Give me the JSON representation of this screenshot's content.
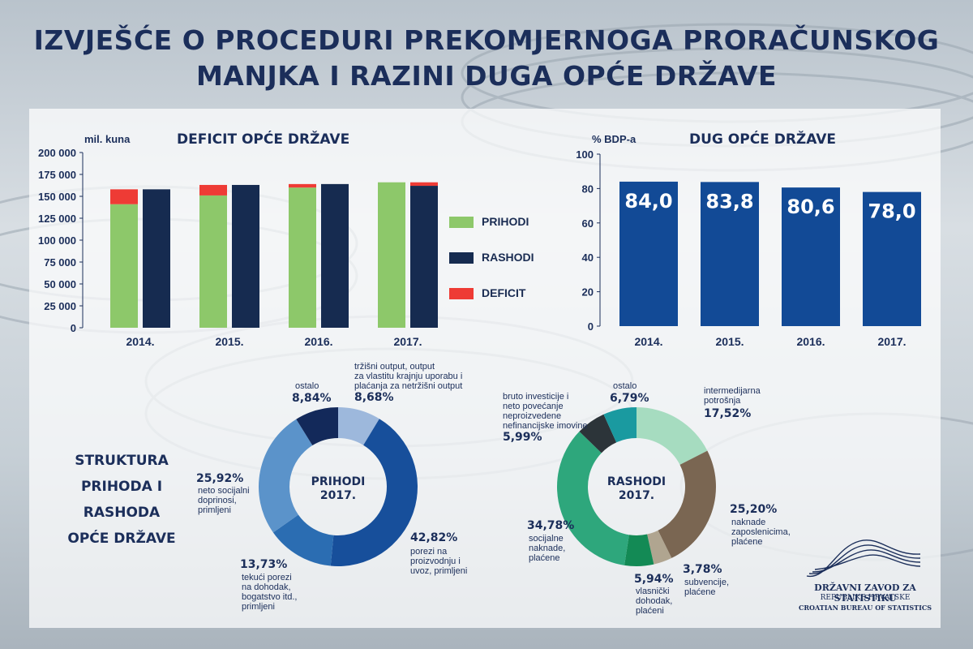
{
  "title": {
    "line1": "IZVJEŠĆE O PROCEDURI PREKOMJERNOGA PRORAČUNSKOG",
    "line2": "MANJKA I RAZINI DUGA OPĆE DRŽAVE"
  },
  "colors": {
    "prihodi": "#8dc86a",
    "rashodi": "#162b50",
    "deficit": "#ee3b35",
    "debt_bar": "#124a96"
  },
  "chart_data": [
    {
      "type": "bar",
      "title": "DEFICIT OPĆE DRŽAVE",
      "ylabel": "mil. kuna",
      "ylim": [
        0,
        200000
      ],
      "yticks": [
        "0",
        "25 000",
        "50 000",
        "75 000",
        "100 000",
        "125 000",
        "150 000",
        "175 000",
        "200 000"
      ],
      "categories": [
        "2014.",
        "2015.",
        "2016.",
        "2017."
      ],
      "series": [
        {
          "name": "PRIHODI",
          "values": [
            141000,
            151000,
            160000,
            166000
          ]
        },
        {
          "name": "RASHODI",
          "values": [
            158000,
            163000,
            164000,
            162000
          ]
        },
        {
          "name": "DEFICIT",
          "values": [
            17000,
            12000,
            4000,
            4000
          ]
        }
      ],
      "legend": [
        "PRIHODI",
        "RASHODI",
        "DEFICIT"
      ]
    },
    {
      "type": "bar",
      "title": "DUG OPĆE DRŽAVE",
      "ylabel": "% BDP-a",
      "ylim": [
        0,
        100
      ],
      "yticks": [
        "0",
        "20",
        "40",
        "60",
        "80",
        "100"
      ],
      "categories": [
        "2014.",
        "2015.",
        "2016.",
        "2017."
      ],
      "values": [
        84.0,
        83.8,
        80.6,
        78.0
      ],
      "labels": [
        "84,0",
        "83,8",
        "80,6",
        "78,0"
      ]
    },
    {
      "type": "pie",
      "title": "PRIHODI 2017.",
      "slices": [
        {
          "label": "tržišni output, output za vlastitu krajnju uporabu i plaćanja za netržišni output",
          "value": 8.68,
          "pct": "8,68%",
          "color": "#9db8dc"
        },
        {
          "label": "porezi na proizvodnju i uvoz, primljeni",
          "value": 42.82,
          "pct": "42,82%",
          "color": "#174f9b"
        },
        {
          "label": "tekući porezi na dohodak, bogatstvo itd., primljeni",
          "value": 13.73,
          "pct": "13,73%",
          "color": "#2b6db2"
        },
        {
          "label": "neto socijalni doprinosi, primljeni",
          "value": 25.92,
          "pct": "25,92%",
          "color": "#5b93ca"
        },
        {
          "label": "ostalo",
          "value": 8.84,
          "pct": "8,84%",
          "color": "#13295a"
        }
      ]
    },
    {
      "type": "pie",
      "title": "RASHODI 2017.",
      "slices": [
        {
          "label": "intermedijarna potrošnja",
          "value": 17.52,
          "pct": "17,52%",
          "color": "#a6dcc0"
        },
        {
          "label": "naknade zaposlenicima, plaćene",
          "value": 25.2,
          "pct": "25,20%",
          "color": "#7a6652"
        },
        {
          "label": "subvencije, plaćene",
          "value": 3.78,
          "pct": "3,78%",
          "color": "#b0a590"
        },
        {
          "label": "vlasnički dohodak, plaćeni",
          "value": 5.94,
          "pct": "5,94%",
          "color": "#138a55"
        },
        {
          "label": "socijalne naknade, plaćene",
          "value": 34.78,
          "pct": "34,78%",
          "color": "#2ea77c"
        },
        {
          "label": "bruto investicije i neto povećanje neproizvedene nefinancijske imovine",
          "value": 5.99,
          "pct": "5,99%",
          "color": "#2c3439"
        },
        {
          "label": "ostalo",
          "value": 6.79,
          "pct": "6,79%",
          "color": "#1a9aa0"
        }
      ]
    }
  ],
  "text": {
    "deficit_title": "DEFICIT OPĆE DRŽAVE",
    "deficit_unit": "mil. kuna",
    "debt_title": "DUG OPĆE DRŽAVE",
    "debt_unit": "% BDP-a",
    "legend_prihodi": "PRIHODI",
    "legend_rashodi": "RASHODI",
    "legend_deficit": "DEFICIT",
    "structure_title_1": "STRUKTURA",
    "structure_title_2": "PRIHODA I",
    "structure_title_3": "RASHODA",
    "structure_title_4": "OPĆE DRŽAVE",
    "prihodi_center_1": "PRIHODI",
    "prihodi_center_2": "2017.",
    "rashodi_center_1": "RASHODI",
    "rashodi_center_2": "2017.",
    "p_ostalo_label": "ostalo",
    "p_ostalo_pct": "8,84%",
    "p_trzisni_l1": "tržišni output, output",
    "p_trzisni_l2": "za vlastitu krajnju uporabu i",
    "p_trzisni_l3": "plaćanja za netržišni output",
    "p_trzisni_pct": "8,68%",
    "p_socijalni_pct": "25,92%",
    "p_socijalni_l1": "neto socijalni",
    "p_socijalni_l2": "doprinosi,",
    "p_socijalni_l3": "primljeni",
    "p_porezi_pct": "42,82%",
    "p_porezi_l1": "porezi na",
    "p_porezi_l2": "proizvodnju i",
    "p_porezi_l3": "uvoz, primljeni",
    "p_tekuci_pct": "13,73%",
    "p_tekuci_l1": "tekući porezi",
    "p_tekuci_l2": "na dohodak,",
    "p_tekuci_l3": "bogatstvo itd.,",
    "p_tekuci_l4": "primljeni",
    "r_bruto_l1": "bruto investicije i",
    "r_bruto_l2": "neto povećanje",
    "r_bruto_l3": "neproizvedene",
    "r_bruto_l4": "nefinancijske imovine",
    "r_bruto_pct": "5,99%",
    "r_ostalo_label": "ostalo",
    "r_ostalo_pct": "6,79%",
    "r_inter_l1": "intermedijarna",
    "r_inter_l2": "potrošnja",
    "r_inter_pct": "17,52%",
    "r_naknade_pct": "25,20%",
    "r_naknade_l1": "naknade",
    "r_naknade_l2": "zaposlenicima,",
    "r_naknade_l3": "plaćene",
    "r_subv_pct": "3,78%",
    "r_subv_l1": "subvencije,",
    "r_subv_l2": "plaćene",
    "r_vlas_pct": "5,94%",
    "r_vlas_l1": "vlasnički",
    "r_vlas_l2": "dohodak,",
    "r_vlas_l3": "plaćeni",
    "r_soc_pct": "34,78%",
    "r_soc_l1": "socijalne",
    "r_soc_l2": "naknade,",
    "r_soc_l3": "plaćene"
  },
  "logo": {
    "line1": "DRŽAVNI ZAVOD ZA STATISTIKU",
    "line2": "REPUBLIKE HRVATSKE",
    "line3": "CROATIAN BUREAU OF STATISTICS"
  }
}
